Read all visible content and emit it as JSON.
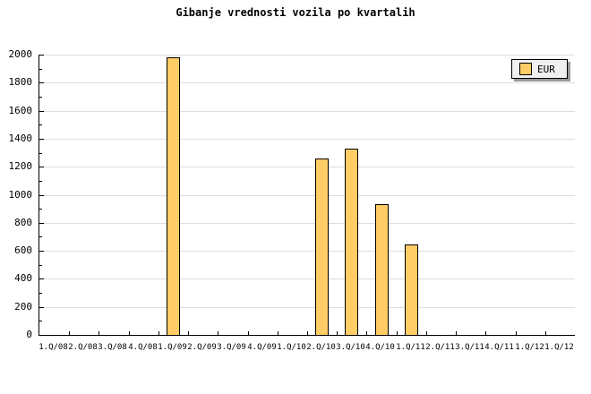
{
  "title": "Gibanje vrednosti vozila po kvartalih",
  "legend": {
    "label": "EUR"
  },
  "colors": {
    "background": "#FFFFFF",
    "bar_fill": "#FFCC66",
    "bar_border": "#000000",
    "grid": "#DDDDDD",
    "axis": "#000000",
    "text": "#000000",
    "legend_bg": "#F0F0F0",
    "legend_shadow": "#999999"
  },
  "chart_data": {
    "type": "bar",
    "title": "Gibanje vrednosti vozila po kvartalih",
    "categories": [
      "1.Q/08",
      "2.Q/08",
      "3.Q/08",
      "4.Q/08",
      "1.Q/09",
      "2.Q/09",
      "3.Q/09",
      "4.Q/09",
      "1.Q/10",
      "2.Q/10",
      "3.Q/10",
      "4.Q/10",
      "1.Q/11",
      "2.Q/11",
      "3.Q/11",
      "4.Q/11",
      "1.Q/12",
      "1.Q/12"
    ],
    "series": [
      {
        "name": "EUR",
        "values": [
          0,
          0,
          0,
          0,
          1975,
          0,
          0,
          0,
          0,
          1255,
          1325,
          925,
          640,
          0,
          0,
          0,
          0,
          0
        ]
      }
    ],
    "xlabel": "",
    "ylabel": "",
    "ylim": [
      0,
      2000
    ],
    "ytick_step": 200,
    "ytick_minor_step": 100,
    "yticks": [
      0,
      200,
      400,
      600,
      800,
      1000,
      1200,
      1400,
      1600,
      1800,
      2000
    ],
    "grid": true,
    "legend_position": "top-right",
    "bar_color": "#FFCC66"
  }
}
